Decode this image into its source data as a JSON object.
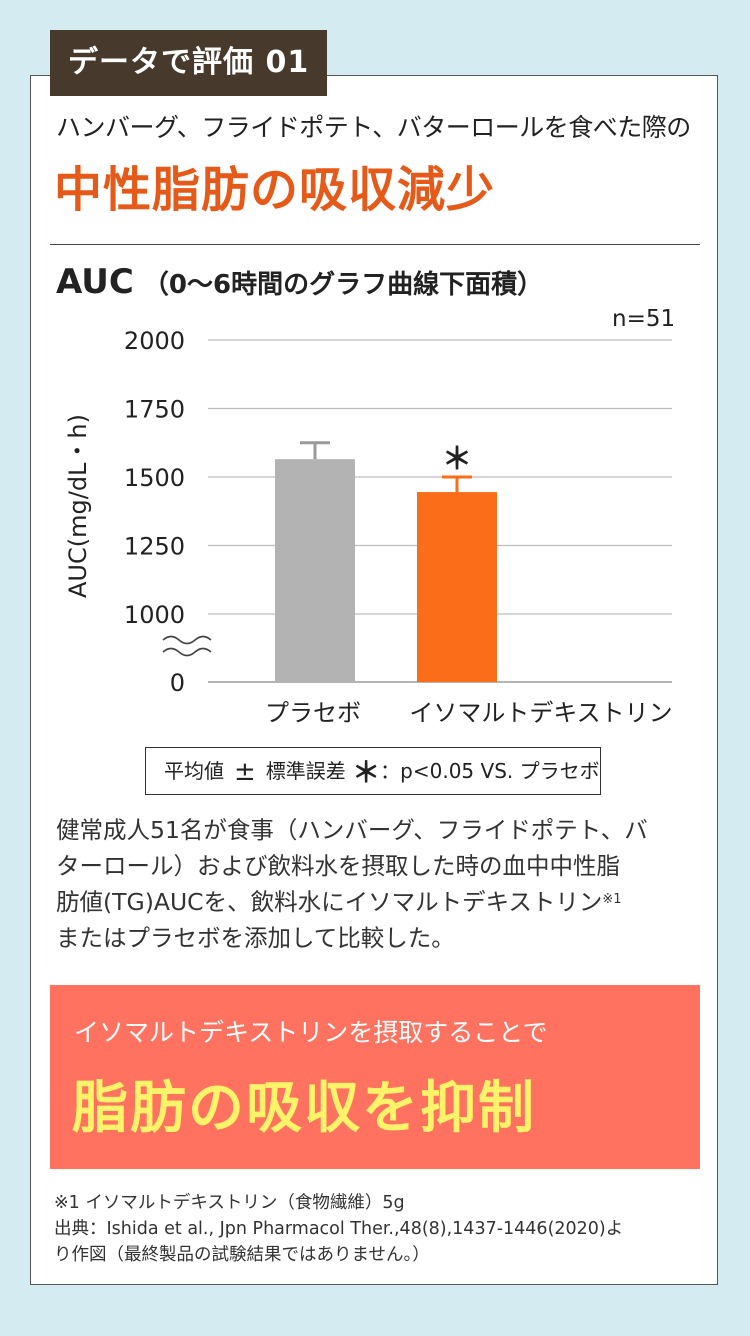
{
  "header": {
    "tag": "データで評価 01",
    "subtitle": "ハンバーグ、フライドポテト、バターロールを食べた際の",
    "title": "中性脂肪の吸収減少"
  },
  "chart_title": {
    "main": "AUC",
    "paren": "（0〜6時間のグラフ曲線下面積）"
  },
  "n_label": "n=51",
  "chart_data": {
    "type": "bar",
    "categories": [
      "プラセボ",
      "イソマルトデキストリン"
    ],
    "values": [
      1565,
      1445
    ],
    "errors": [
      60,
      55
    ],
    "significance": [
      "",
      "＊"
    ],
    "ylabel": "AUC(mg/dL・h)",
    "yticks": [
      0,
      1000,
      1250,
      1500,
      1750,
      2000
    ],
    "ylim": [
      1000,
      2000
    ],
    "axis_break": true,
    "grid": true,
    "colors": [
      "#b3b3b3",
      "#fb6d19"
    ]
  },
  "legend": {
    "mean": "平均値",
    "pm": "±",
    "se": "標準誤差",
    "asterisk": "＊",
    "sig": "：p<0.05 VS. プラセボ"
  },
  "description": {
    "line1": "健常成人51名が食事（ハンバーグ、フライドポテト、バ",
    "line2": "ターロール）および飲料水を摂取した時の血中中性脂",
    "line3": "肪値(TG)AUCを、飲料水にイソマルトデキストリン",
    "sup": "※1",
    "line4": "またはプラセボを添加して比較した。"
  },
  "banner": {
    "sub": "イソマルトデキストリンを摂取することで",
    "main": "脂肪の吸収を抑制"
  },
  "notes": {
    "line1": "※1 イソマルトデキストリン（食物繊維）5g",
    "line2": "出典：Ishida et al., Jpn Pharmacol Ther.,48(8),1437-1446(2020)よ",
    "line3": "り作図（最終製品の試験結果ではありません。）"
  }
}
